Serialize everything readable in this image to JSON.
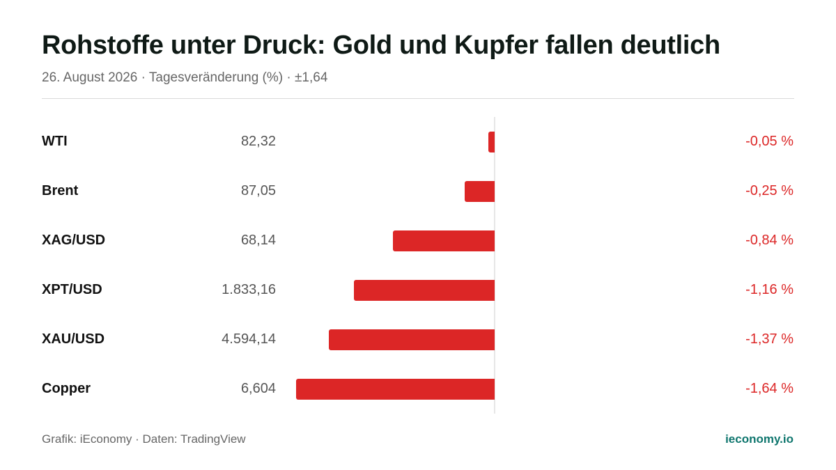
{
  "header": {
    "title": "Rohstoffe unter Druck: Gold und Kupfer fallen deutlich",
    "subtitle": "26. August 2026 · Tagesveränderung (%) · ±1,64"
  },
  "footer": {
    "source": "Grafik: iEconomy · Daten: TradingView",
    "brand": "ieconomy.io"
  },
  "colors": {
    "negative": "#dc2626",
    "brand": "#0f766e"
  },
  "chart_data": {
    "type": "bar",
    "orientation": "horizontal",
    "title": "Rohstoffe unter Druck: Gold und Kupfer fallen deutlich",
    "subtitle": "26. August 2026 · Tagesveränderung (%) · ±1,64",
    "xlim": [
      -1.64,
      1.64
    ],
    "grid": false,
    "legend": "none",
    "categories": [
      "WTI",
      "Brent",
      "XAG/USD",
      "XPT/USD",
      "XAU/USD",
      "Copper"
    ],
    "prices": [
      "82,32",
      "87,05",
      "68,14",
      "1.833,16",
      "4.594,14",
      "6,604"
    ],
    "values": [
      -0.05,
      -0.25,
      -0.84,
      -1.16,
      -1.37,
      -1.64
    ],
    "value_labels": [
      "-0,05 %",
      "-0,25 %",
      "-0,84 %",
      "-1,16 %",
      "-1,37 %",
      "-1,64 %"
    ]
  }
}
